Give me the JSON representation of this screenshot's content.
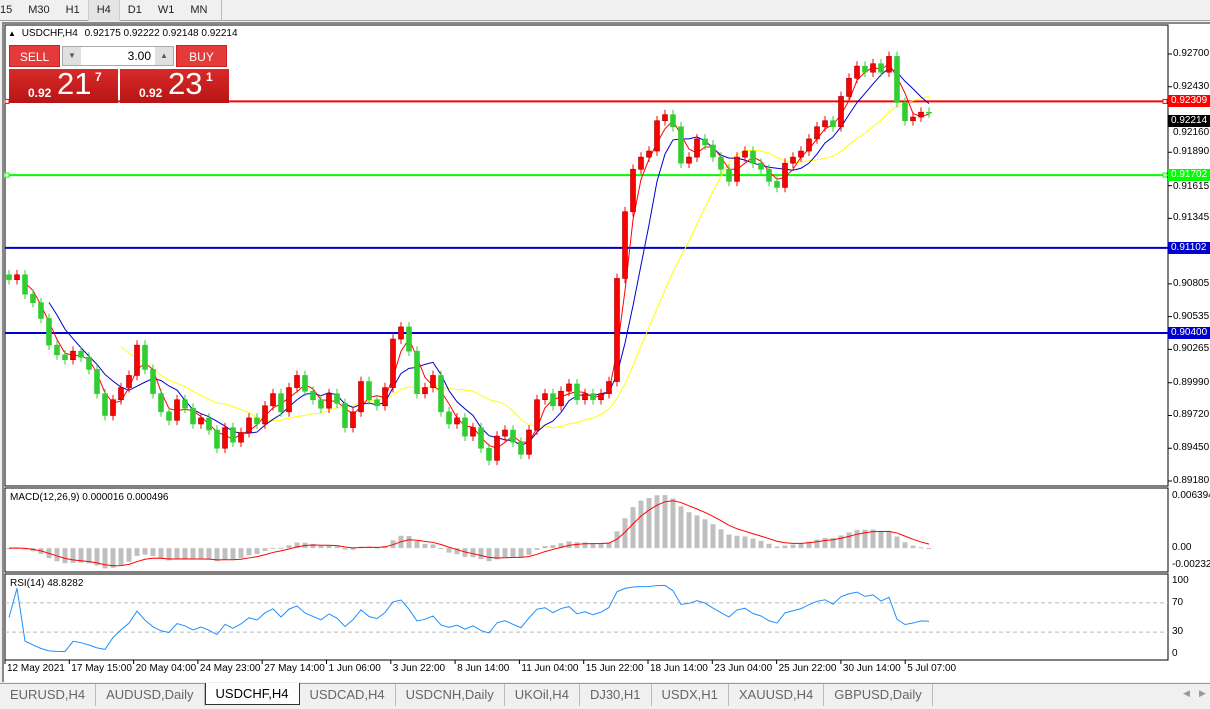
{
  "timeframes": [
    "15",
    "M30",
    "H1",
    "H4",
    "D1",
    "W1",
    "MN"
  ],
  "active_timeframe": "H4",
  "chart_title": {
    "symbol": "USDCHF,H4",
    "ohlc": "0.92175 0.92222 0.92148 0.92214"
  },
  "trade_panel": {
    "sell_label": "SELL",
    "buy_label": "BUY",
    "lot": "3.00",
    "sell_price": {
      "prefix": "0.92",
      "big": "21",
      "sup": "7"
    },
    "buy_price": {
      "prefix": "0.92",
      "big": "23",
      "sup": "1"
    }
  },
  "colors": {
    "bull": "#ff0000",
    "bear": "#32cd32",
    "ma_fast": "#ff0000",
    "ma_mid": "#0000cd",
    "ma_slow": "#ffff00",
    "macd_hist": "#c0c0c0",
    "macd_signal": "#ff0000",
    "rsi": "#1e90ff"
  },
  "chart_data": {
    "type": "candlestick",
    "price_axis": {
      "min": 0.8918,
      "max": 0.927,
      "ticks": [
        "0.92700",
        "0.92430",
        "0.92160",
        "0.91890",
        "0.91615",
        "0.91345",
        "0.90805",
        "0.90535",
        "0.90265",
        "0.89990",
        "0.89720",
        "0.89450",
        "0.89180"
      ]
    },
    "current_price": "0.92214",
    "levels": [
      {
        "value": "0.92309",
        "color": "#ff0000"
      },
      {
        "value": "0.91702",
        "color": "#00ff00"
      },
      {
        "value": "0.91102",
        "color": "#0000cd"
      },
      {
        "value": "0.90400",
        "color": "#0000cd"
      }
    ],
    "closes": [
      0.9084,
      0.9088,
      0.9072,
      0.9065,
      0.9052,
      0.903,
      0.9022,
      0.9018,
      0.9025,
      0.902,
      0.901,
      0.899,
      0.8972,
      0.8985,
      0.8995,
      0.9005,
      0.903,
      0.901,
      0.899,
      0.8975,
      0.8968,
      0.8985,
      0.8978,
      0.8965,
      0.897,
      0.896,
      0.8945,
      0.8962,
      0.895,
      0.8958,
      0.897,
      0.8965,
      0.898,
      0.899,
      0.8975,
      0.8995,
      0.9005,
      0.8992,
      0.8985,
      0.8978,
      0.899,
      0.8982,
      0.8962,
      0.8975,
      0.9,
      0.8985,
      0.898,
      0.8995,
      0.9035,
      0.9045,
      0.9025,
      0.899,
      0.8995,
      0.9005,
      0.8975,
      0.8965,
      0.897,
      0.8955,
      0.8962,
      0.8945,
      0.8935,
      0.8955,
      0.896,
      0.895,
      0.894,
      0.896,
      0.8985,
      0.899,
      0.898,
      0.8992,
      0.8998,
      0.8985,
      0.899,
      0.8985,
      0.899,
      0.9,
      0.9085,
      0.914,
      0.9175,
      0.9185,
      0.919,
      0.9215,
      0.922,
      0.921,
      0.918,
      0.9185,
      0.92,
      0.9195,
      0.9185,
      0.9175,
      0.9165,
      0.9185,
      0.919,
      0.918,
      0.9175,
      0.9165,
      0.916,
      0.918,
      0.9185,
      0.919,
      0.92,
      0.921,
      0.9215,
      0.921,
      0.9235,
      0.925,
      0.926,
      0.9255,
      0.9262,
      0.9255,
      0.9268,
      0.923,
      0.9215,
      0.9218,
      0.9222,
      0.92214
    ],
    "time_labels": [
      "12 May 2021",
      "17 May 15:00",
      "20 May 04:00",
      "24 May 23:00",
      "27 May 14:00",
      "1 Jun 06:00",
      "3 Jun 22:00",
      "8 Jun 14:00",
      "11 Jun 04:00",
      "15 Jun 22:00",
      "18 Jun 14:00",
      "23 Jun 04:00",
      "25 Jun 22:00",
      "30 Jun 14:00",
      "5 Jul 07:00"
    ],
    "macd": {
      "label": "MACD(12,26,9) 0.000016 0.000496",
      "range": [
        -0.0027,
        0.0068
      ],
      "ticks": [
        "0.006394",
        "0.00",
        "-0.002322"
      ]
    },
    "rsi": {
      "label": "RSI(14) 48.8282",
      "range": [
        0,
        100
      ],
      "ticks": [
        "100",
        "70",
        "30",
        "0"
      ],
      "levels": [
        70,
        30
      ]
    }
  },
  "tabs": [
    "EURUSD,H4",
    "AUDUSD,Daily",
    "USDCHF,H4",
    "USDCAD,H4",
    "USDCNH,Daily",
    "UKOil,H4",
    "DJ30,H1",
    "USDX,H1",
    "XAUUSD,H4",
    "GBPUSD,Daily"
  ],
  "active_tab": "USDCHF,H4"
}
